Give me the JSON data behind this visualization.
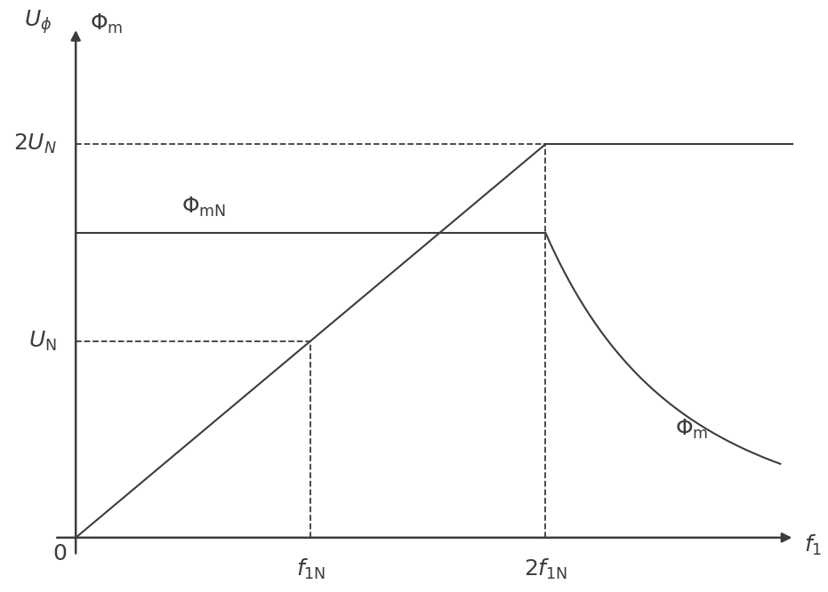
{
  "bg_color": "#ffffff",
  "line_color": "#3c3c3c",
  "dashed_color": "#3c3c3c",
  "f1N": 1.0,
  "f1_2N": 2.0,
  "UN": 1.0,
  "U2N": 2.0,
  "PhimN": 1.55,
  "x_max": 3.0,
  "y_max": 2.5,
  "decay_k": 3.5
}
